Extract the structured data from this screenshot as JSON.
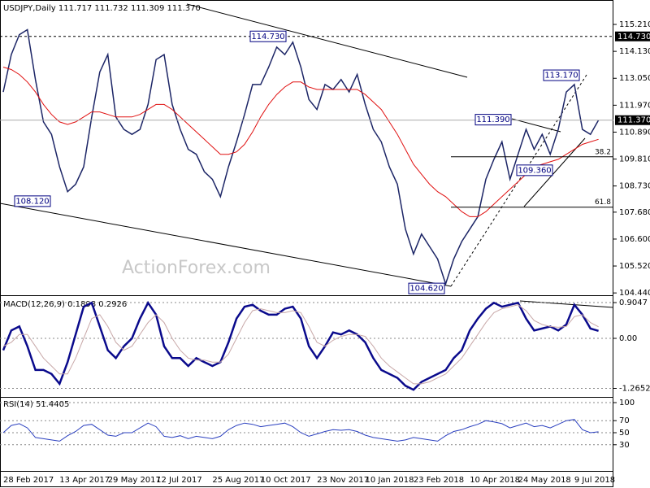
{
  "chart_data": [
    {
      "type": "line",
      "title": "USDJPY,Daily  111.717 111.732 111.309 111.370",
      "watermark": "ActionForex.com",
      "categories": [
        "28 Feb 2017",
        null,
        null,
        null,
        null,
        null,
        null,
        "13 Apr 2017",
        null,
        null,
        null,
        null,
        null,
        "29 May 2017",
        null,
        null,
        null,
        null,
        null,
        "12 Jul 2017",
        null,
        null,
        null,
        null,
        null,
        null,
        "25 Aug 2017",
        null,
        null,
        null,
        null,
        null,
        "10 Oct 2017",
        null,
        null,
        null,
        null,
        null,
        null,
        "23 Nov 2017",
        null,
        null,
        null,
        null,
        null,
        "10 Jan 2018",
        null,
        null,
        null,
        null,
        null,
        "23 Feb 2018",
        null,
        null,
        null,
        null,
        null,
        null,
        "10 Apr 2018",
        null,
        null,
        null,
        null,
        null,
        "24 May 2018",
        null,
        null,
        null,
        null,
        null,
        null,
        "9 Jul 2018",
        null,
        null,
        null
      ],
      "series": [
        {
          "color": "#1c2566",
          "values": [
            112.5,
            114.0,
            114.8,
            115.0,
            113.0,
            111.3,
            110.8,
            109.5,
            108.5,
            108.8,
            109.5,
            111.5,
            113.3,
            114.0,
            111.5,
            111.0,
            110.8,
            111.0,
            112.0,
            113.8,
            114.0,
            112.0,
            111.0,
            110.2,
            110.0,
            109.3,
            109.0,
            108.3,
            109.5,
            110.5,
            111.6,
            112.8,
            112.8,
            113.5,
            114.3,
            114.0,
            114.5,
            113.5,
            112.2,
            111.8,
            112.8,
            112.6,
            113.0,
            112.5,
            113.2,
            112.0,
            111.0,
            110.5,
            109.5,
            108.8,
            107.0,
            106.0,
            106.8,
            106.3,
            105.8,
            104.8,
            105.8,
            106.5,
            107.0,
            107.5,
            109.0,
            109.8,
            110.5,
            109.0,
            110.0,
            111.0,
            110.2,
            110.8,
            110.0,
            111.0,
            112.5,
            112.8,
            111.0,
            110.8,
            111.37
          ]
        },
        {
          "color": "#e01010",
          "values": [
            113.5,
            113.4,
            113.2,
            112.9,
            112.5,
            112.0,
            111.6,
            111.3,
            111.2,
            111.3,
            111.5,
            111.7,
            111.7,
            111.6,
            111.5,
            111.5,
            111.5,
            111.6,
            111.8,
            112.0,
            112.0,
            111.8,
            111.5,
            111.2,
            110.9,
            110.6,
            110.3,
            110.0,
            110.0,
            110.1,
            110.4,
            110.9,
            111.5,
            112.0,
            112.4,
            112.7,
            112.9,
            112.9,
            112.7,
            112.6,
            112.6,
            112.6,
            112.6,
            112.6,
            112.6,
            112.4,
            112.1,
            111.8,
            111.3,
            110.8,
            110.2,
            109.6,
            109.2,
            108.8,
            108.5,
            108.3,
            108.0,
            107.7,
            107.5,
            107.5,
            107.7,
            108.0,
            108.3,
            108.6,
            108.9,
            109.2,
            109.5,
            109.6,
            109.7,
            109.8,
            110.0,
            110.2,
            110.4,
            110.5,
            110.6
          ]
        }
      ],
      "ylim": [
        104.38,
        116.19
      ],
      "yticks": [
        {
          "value": 115.21,
          "label": "115.210"
        },
        {
          "value": 114.13,
          "label": "114.130"
        },
        {
          "value": 113.05,
          "label": "113.050"
        },
        {
          "value": 111.97,
          "label": "111.970"
        },
        {
          "value": 110.89,
          "label": "110.890"
        },
        {
          "value": 109.81,
          "label": "109.810"
        },
        {
          "value": 108.73,
          "label": "108.730"
        },
        {
          "value": 107.68,
          "label": "107.680"
        },
        {
          "value": 106.6,
          "label": "106.600"
        },
        {
          "value": 105.52,
          "label": "105.520"
        },
        {
          "value": 104.44,
          "label": "104.440"
        }
      ],
      "level": {
        "value": 114.73,
        "label": "114.730"
      },
      "current": {
        "value": 111.37,
        "label": "111.370"
      },
      "fib_levels": [
        {
          "value": 109.9,
          "label": "38.2"
        },
        {
          "value": 107.88,
          "label": "61.8"
        }
      ],
      "annotations": [
        {
          "value": 114.73,
          "label": "114.730"
        },
        {
          "value": 108.12,
          "label": "108.120"
        },
        {
          "value": 113.17,
          "label": "113.170"
        },
        {
          "value": 111.39,
          "label": "111.390"
        },
        {
          "value": 109.36,
          "label": "109.360"
        },
        {
          "value": 104.62,
          "label": "104.620"
        }
      ]
    },
    {
      "type": "line",
      "title": "MACD(12,26,9) 0.1898 0.2926",
      "series": [
        {
          "color": "#0a0a8c",
          "values": [
            -0.3,
            0.2,
            0.3,
            -0.2,
            -0.8,
            -0.8,
            -0.9,
            -1.15,
            -0.6,
            0.1,
            0.8,
            0.9,
            0.3,
            -0.3,
            -0.5,
            -0.2,
            0.0,
            0.5,
            0.9,
            0.6,
            -0.2,
            -0.5,
            -0.5,
            -0.7,
            -0.5,
            -0.6,
            -0.7,
            -0.6,
            -0.1,
            0.5,
            0.8,
            0.85,
            0.7,
            0.6,
            0.6,
            0.75,
            0.8,
            0.5,
            -0.2,
            -0.5,
            -0.2,
            0.15,
            0.1,
            0.2,
            0.1,
            -0.1,
            -0.5,
            -0.8,
            -0.9,
            -1.0,
            -1.2,
            -1.3,
            -1.1,
            -1.0,
            -0.9,
            -0.8,
            -0.5,
            -0.3,
            0.2,
            0.5,
            0.75,
            0.9,
            0.8,
            0.85,
            0.9,
            0.5,
            0.2,
            0.25,
            0.3,
            0.2,
            0.35,
            0.85,
            0.6,
            0.25,
            0.1898
          ]
        },
        {
          "color": "#c8a8a8",
          "values": [
            -0.2,
            -0.1,
            0.1,
            0.1,
            -0.2,
            -0.5,
            -0.7,
            -0.9,
            -0.9,
            -0.5,
            0.0,
            0.5,
            0.6,
            0.3,
            -0.1,
            -0.3,
            -0.2,
            0.1,
            0.4,
            0.6,
            0.4,
            0.0,
            -0.3,
            -0.5,
            -0.55,
            -0.55,
            -0.6,
            -0.6,
            -0.4,
            0.0,
            0.4,
            0.7,
            0.75,
            0.7,
            0.65,
            0.65,
            0.7,
            0.65,
            0.3,
            -0.1,
            -0.2,
            -0.05,
            0.05,
            0.1,
            0.1,
            0.05,
            -0.2,
            -0.5,
            -0.7,
            -0.85,
            -1.0,
            -1.15,
            -1.15,
            -1.1,
            -1.0,
            -0.9,
            -0.7,
            -0.5,
            -0.2,
            0.1,
            0.4,
            0.65,
            0.75,
            0.8,
            0.85,
            0.7,
            0.45,
            0.35,
            0.3,
            0.28,
            0.3,
            0.55,
            0.6,
            0.4,
            0.2926
          ]
        }
      ],
      "ylim": [
        -1.481,
        1.029
      ],
      "yticks": [
        0.9047,
        {
          "value": 0,
          "label": "0.00"
        },
        -1.2652
      ]
    },
    {
      "type": "line",
      "title": "RSI(14) 51.4405",
      "series": [
        {
          "color": "#2a3fbf",
          "values": [
            50,
            62,
            65,
            58,
            42,
            40,
            38,
            36,
            45,
            52,
            62,
            64,
            55,
            46,
            44,
            50,
            50,
            58,
            66,
            60,
            44,
            42,
            45,
            40,
            44,
            42,
            40,
            44,
            55,
            62,
            66,
            64,
            60,
            62,
            64,
            66,
            60,
            50,
            44,
            48,
            52,
            55,
            54,
            55,
            52,
            46,
            42,
            40,
            38,
            36,
            38,
            42,
            40,
            38,
            36,
            45,
            52,
            55,
            60,
            64,
            70,
            68,
            65,
            58,
            62,
            66,
            60,
            62,
            58,
            64,
            70,
            72,
            55,
            50,
            51.4405
          ]
        }
      ],
      "ylim": [
        -12.2,
        106.8
      ],
      "yticks": [
        100,
        70,
        50,
        30
      ]
    }
  ]
}
